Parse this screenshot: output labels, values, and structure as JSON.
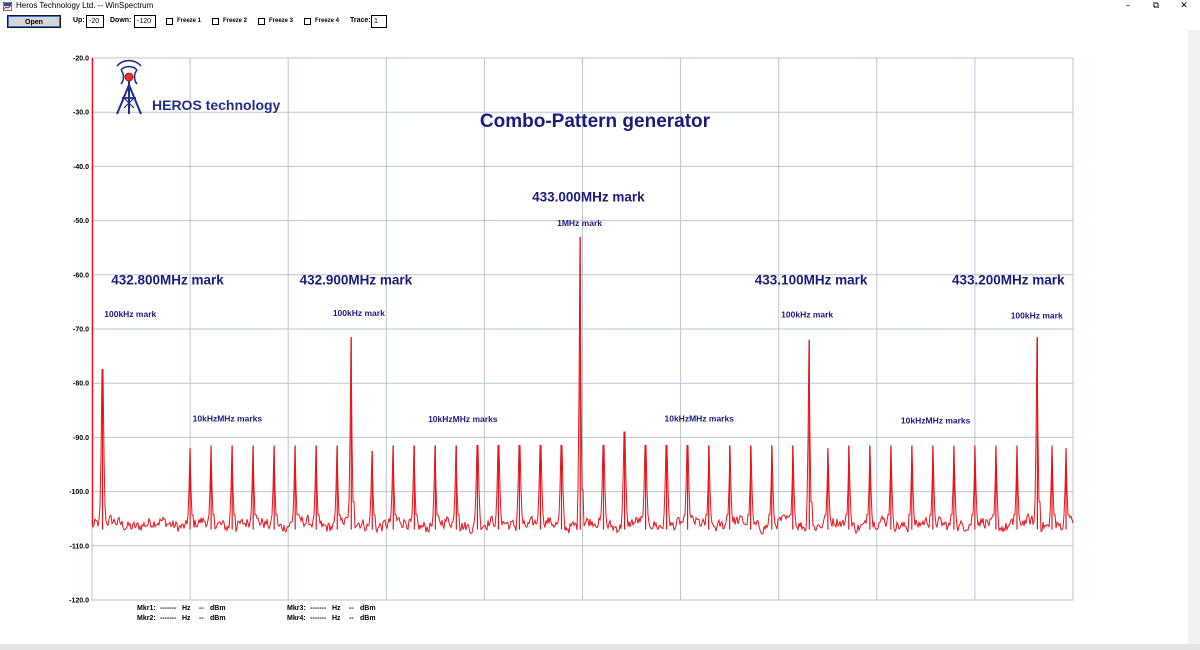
{
  "window": {
    "title": "Heros Technology Ltd.  --  WinSpectrum",
    "controls": {
      "minimize": "–",
      "restore": "⧉",
      "close": "✕"
    }
  },
  "toolbar": {
    "open_label": "Open",
    "up_label": "Up:",
    "up_value": "-20",
    "down_label": "Down:",
    "down_value": "-120",
    "freeze": [
      "Freeze 1",
      "Freeze 2",
      "Freeze 3",
      "Freeze 4"
    ],
    "trace_label": "Trace:",
    "trace_value": "1"
  },
  "logo_text": "HEROS technology",
  "colors": {
    "trace": "#e8141c",
    "grid": "#b9c7d2",
    "label": "#1b1b7e"
  },
  "chart_data": {
    "type": "line",
    "title": "Combo-Pattern generator",
    "ylim": [
      -120,
      -20
    ],
    "y_ticks": [
      "-20.0",
      "-30.0",
      "-40.0",
      "-50.0",
      "-60.0",
      "-70.0",
      "-80.0",
      "-90.0",
      "-100.0",
      "-110.0",
      "-120.0"
    ],
    "x_divisions": 10,
    "noise_floor_dbm": -106,
    "series": [
      {
        "peaks": [
          {
            "x": 0.0107,
            "y": -77.5
          },
          {
            "x": 0.1,
            "y": -92
          },
          {
            "x": 0.1214,
            "y": -91.5
          },
          {
            "x": 0.1429,
            "y": -91.5
          },
          {
            "x": 0.1643,
            "y": -91.5
          },
          {
            "x": 0.1857,
            "y": -91.5
          },
          {
            "x": 0.2071,
            "y": -91.5
          },
          {
            "x": 0.2286,
            "y": -91.5
          },
          {
            "x": 0.25,
            "y": -91.5
          },
          {
            "x": 0.2643,
            "y": -71.5
          },
          {
            "x": 0.2857,
            "y": -92.5
          },
          {
            "x": 0.3071,
            "y": -91.5
          },
          {
            "x": 0.3286,
            "y": -91.5
          },
          {
            "x": 0.35,
            "y": -91.5
          },
          {
            "x": 0.3714,
            "y": -91.5
          },
          {
            "x": 0.3929,
            "y": -91.5
          },
          {
            "x": 0.4143,
            "y": -91.5
          },
          {
            "x": 0.4357,
            "y": -91.5
          },
          {
            "x": 0.4571,
            "y": -91.5
          },
          {
            "x": 0.4786,
            "y": -91.5
          },
          {
            "x": 0.4977,
            "y": -53
          },
          {
            "x": 0.5214,
            "y": -91.5
          },
          {
            "x": 0.5429,
            "y": -89
          },
          {
            "x": 0.5643,
            "y": -91.5
          },
          {
            "x": 0.5857,
            "y": -91.5
          },
          {
            "x": 0.6071,
            "y": -91.5
          },
          {
            "x": 0.6286,
            "y": -91.5
          },
          {
            "x": 0.65,
            "y": -91.5
          },
          {
            "x": 0.6714,
            "y": -91.5
          },
          {
            "x": 0.6929,
            "y": -91.5
          },
          {
            "x": 0.7143,
            "y": -91.5
          },
          {
            "x": 0.7312,
            "y": -72
          },
          {
            "x": 0.7501,
            "y": -92
          },
          {
            "x": 0.7714,
            "y": -91.5
          },
          {
            "x": 0.7929,
            "y": -91.5
          },
          {
            "x": 0.8143,
            "y": -91.5
          },
          {
            "x": 0.8357,
            "y": -91.5
          },
          {
            "x": 0.8571,
            "y": -91.5
          },
          {
            "x": 0.8786,
            "y": -91.5
          },
          {
            "x": 0.9,
            "y": -91.5
          },
          {
            "x": 0.9214,
            "y": -91.5
          },
          {
            "x": 0.9429,
            "y": -91.5
          },
          {
            "x": 0.9637,
            "y": -71.5
          },
          {
            "x": 0.9786,
            "y": -91.5
          },
          {
            "x": 0.9929,
            "y": -92
          }
        ]
      }
    ],
    "annotations": [
      {
        "text": "433.000MHz mark",
        "x": 0.506,
        "y": -46.5,
        "size": "large"
      },
      {
        "text": "1MHz mark",
        "x": 0.497,
        "y": -51,
        "size": "small"
      },
      {
        "text": "432.800MHz mark",
        "x": 0.077,
        "y": -61.8,
        "size": "large"
      },
      {
        "text": "432.900MHz mark",
        "x": 0.269,
        "y": -61.8,
        "size": "large"
      },
      {
        "text": "433.100MHz mark",
        "x": 0.733,
        "y": -61.8,
        "size": "large"
      },
      {
        "text": "433.200MHz mark",
        "x": 0.934,
        "y": -61.8,
        "size": "large"
      },
      {
        "text": "100kHz mark",
        "x": 0.039,
        "y": -67.8,
        "size": "small"
      },
      {
        "text": "100kHz mark",
        "x": 0.272,
        "y": -67.6,
        "size": "small"
      },
      {
        "text": "100kHz mark",
        "x": 0.729,
        "y": -67.9,
        "size": "small"
      },
      {
        "text": "100kHz mark",
        "x": 0.963,
        "y": -68.1,
        "size": "small"
      },
      {
        "text": "10kHzMHz marks",
        "x": 0.138,
        "y": -87.1,
        "size": "small"
      },
      {
        "text": "10kHzMHz marks",
        "x": 0.378,
        "y": -87.2,
        "size": "small"
      },
      {
        "text": "10kHzMHz marks",
        "x": 0.619,
        "y": -87.1,
        "size": "small"
      },
      {
        "text": "10kHzMHz marks",
        "x": 0.86,
        "y": -87.4,
        "size": "small"
      }
    ]
  },
  "markers": [
    {
      "label": "Mkr1:",
      "freq": "-------",
      "hz": "Hz",
      "dbm_val": "--",
      "dbm": "dBm"
    },
    {
      "label": "Mkr2:",
      "freq": "-------",
      "hz": "Hz",
      "dbm_val": "--",
      "dbm": "dBm"
    },
    {
      "label": "Mkr3:",
      "freq": "-------",
      "hz": "Hz",
      "dbm_val": "--",
      "dbm": "dBm"
    },
    {
      "label": "Mkr4:",
      "freq": "-------",
      "hz": "Hz",
      "dbm_val": "--",
      "dbm": "dBm"
    }
  ]
}
